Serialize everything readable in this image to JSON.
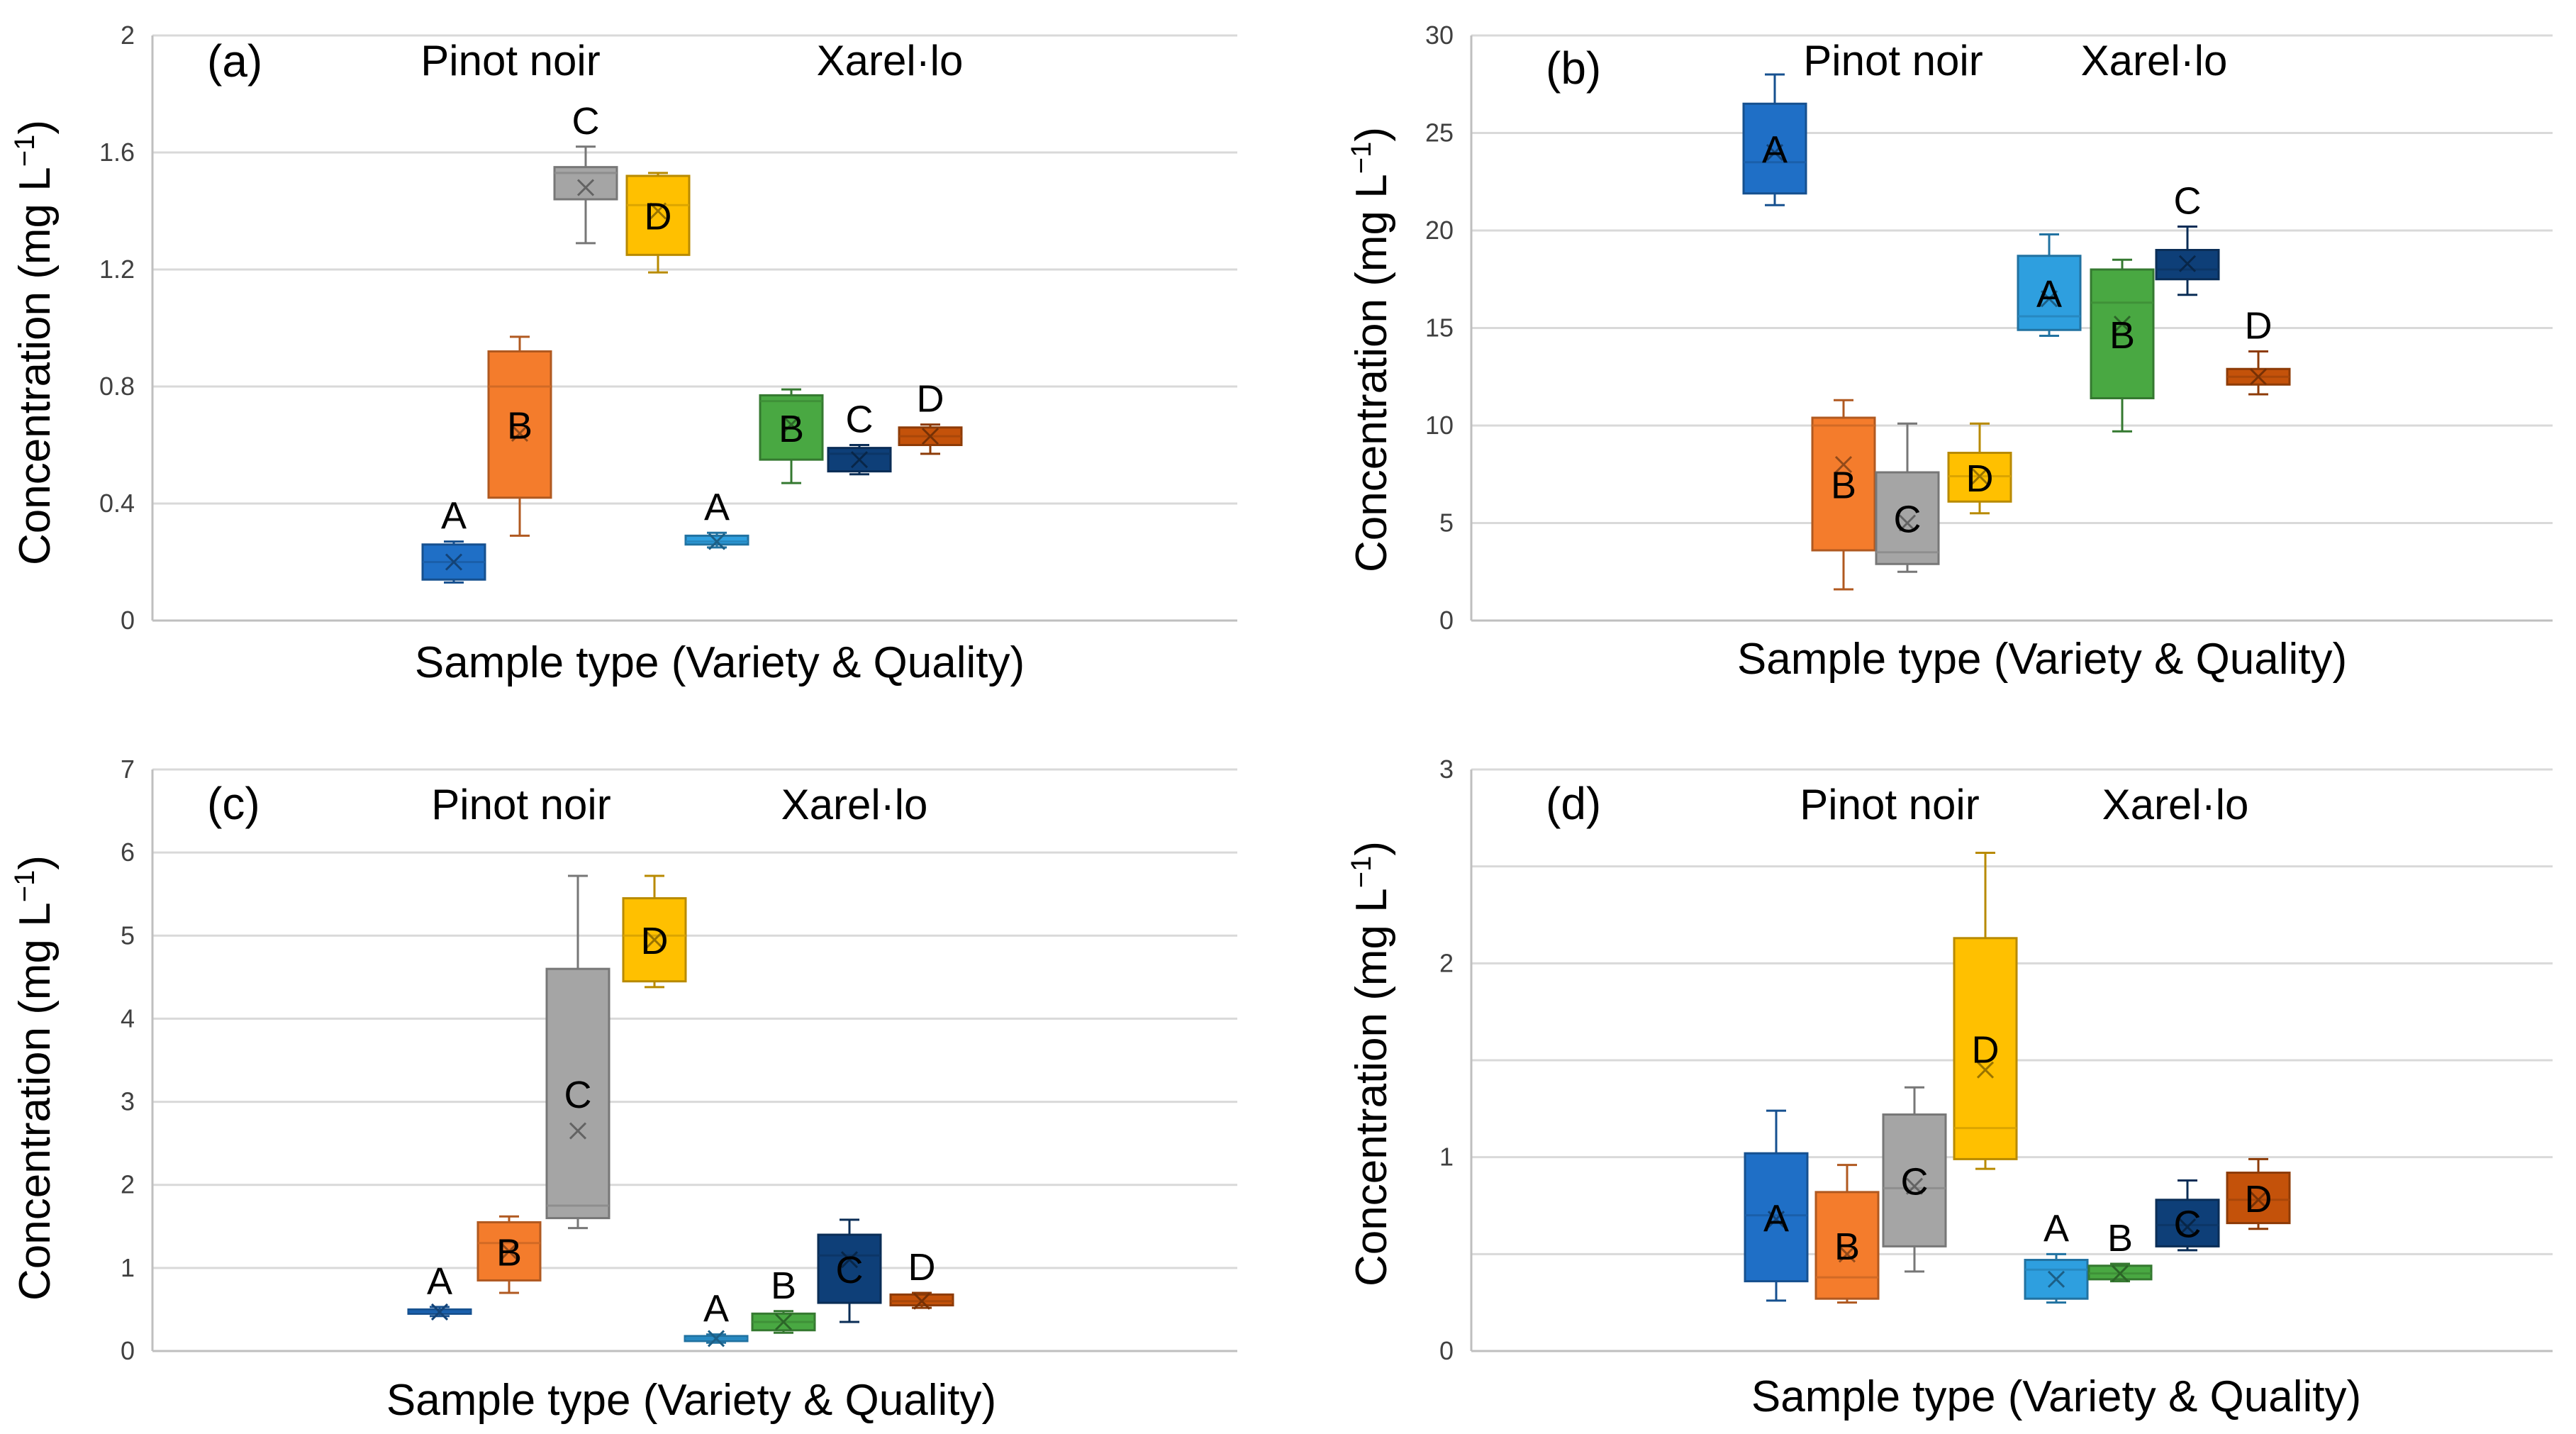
{
  "figure": {
    "variety_labels": [
      "Pinot noir",
      "Xarel·lo"
    ],
    "x_axis_title": "Sample type (Variety & Quality)",
    "y_axis_title": "Concentration (mg L",
    "y_axis_unit_superscript": "−1",
    "y_axis_unit_close": ")"
  },
  "colors": {
    "pinot_A": "#1f6fc6",
    "pinot_B": "#f47c2c",
    "pinot_C": "#a5a5a5",
    "pinot_D": "#ffc000",
    "xarel_A": "#2e9fdf",
    "xarel_B": "#49a842",
    "xarel_C": "#0e3f78",
    "xarel_D": "#c4520a",
    "grid": "#d9d9d9",
    "axis": "#bfbfbf"
  },
  "chart_data": [
    {
      "type": "box",
      "panel": "(a)",
      "ylim": [
        0,
        2
      ],
      "yticks": [
        "0",
        "0.4",
        "0.8",
        "1.2",
        "1.6",
        "2"
      ],
      "ytick_values": [
        0,
        0.4,
        0.8,
        1.2,
        1.6,
        2
      ],
      "series": [
        {
          "variety": "Pinot noir",
          "quality": "A",
          "color_key": "pinot_A",
          "min": 0.13,
          "q1": 0.14,
          "median": 0.2,
          "q3": 0.26,
          "max": 0.27,
          "mean": 0.2
        },
        {
          "variety": "Pinot noir",
          "quality": "B",
          "color_key": "pinot_B",
          "min": 0.29,
          "q1": 0.42,
          "median": 0.8,
          "q3": 0.92,
          "max": 0.97,
          "mean": 0.64
        },
        {
          "variety": "Pinot noir",
          "quality": "C",
          "color_key": "pinot_C",
          "min": 1.29,
          "q1": 1.44,
          "median": 1.53,
          "q3": 1.55,
          "max": 1.62,
          "mean": 1.48
        },
        {
          "variety": "Pinot noir",
          "quality": "D",
          "color_key": "pinot_D",
          "min": 1.19,
          "q1": 1.25,
          "median": 1.42,
          "q3": 1.52,
          "max": 1.53,
          "mean": 1.4
        },
        {
          "variety": "Xarel·lo",
          "quality": "A",
          "color_key": "xarel_A",
          "min": 0.25,
          "q1": 0.26,
          "median": 0.27,
          "q3": 0.29,
          "max": 0.3,
          "mean": 0.27
        },
        {
          "variety": "Xarel·lo",
          "quality": "B",
          "color_key": "xarel_B",
          "min": 0.47,
          "q1": 0.55,
          "median": 0.75,
          "q3": 0.77,
          "max": 0.79,
          "mean": 0.67
        },
        {
          "variety": "Xarel·lo",
          "quality": "C",
          "color_key": "xarel_C",
          "min": 0.5,
          "q1": 0.51,
          "median": 0.57,
          "q3": 0.59,
          "max": 0.6,
          "mean": 0.55
        },
        {
          "variety": "Xarel·lo",
          "quality": "D",
          "color_key": "xarel_D",
          "min": 0.57,
          "q1": 0.6,
          "median": 0.63,
          "q3": 0.66,
          "max": 0.67,
          "mean": 0.63
        }
      ]
    },
    {
      "type": "box",
      "panel": "(b)",
      "ylim": [
        0,
        30
      ],
      "yticks": [
        "0",
        "5",
        "10",
        "15",
        "20",
        "25",
        "30"
      ],
      "ytick_values": [
        0,
        5,
        10,
        15,
        20,
        25,
        30
      ],
      "series": [
        {
          "variety": "Pinot noir",
          "quality": "A",
          "color_key": "pinot_A",
          "min": 21.3,
          "q1": 21.9,
          "median": 23.5,
          "q3": 26.5,
          "max": 28.0,
          "mean": 24.0
        },
        {
          "variety": "Pinot noir",
          "quality": "B",
          "color_key": "pinot_B",
          "min": 1.6,
          "q1": 3.6,
          "median": 10.0,
          "q3": 10.4,
          "max": 11.3,
          "mean": 8.0
        },
        {
          "variety": "Pinot noir",
          "quality": "C",
          "color_key": "pinot_C",
          "min": 2.5,
          "q1": 2.9,
          "median": 3.5,
          "q3": 7.6,
          "max": 10.1,
          "mean": 5.0
        },
        {
          "variety": "Pinot noir",
          "quality": "D",
          "color_key": "pinot_D",
          "min": 5.5,
          "q1": 6.1,
          "median": 7.4,
          "q3": 8.6,
          "max": 10.1,
          "mean": 7.4
        },
        {
          "variety": "Xarel·lo",
          "quality": "A",
          "color_key": "xarel_A",
          "min": 14.6,
          "q1": 14.9,
          "median": 15.6,
          "q3": 18.7,
          "max": 19.8,
          "mean": 16.5
        },
        {
          "variety": "Xarel·lo",
          "quality": "B",
          "color_key": "xarel_B",
          "min": 9.7,
          "q1": 11.4,
          "median": 16.3,
          "q3": 18.0,
          "max": 18.5,
          "mean": 15.2
        },
        {
          "variety": "Xarel·lo",
          "quality": "C",
          "color_key": "xarel_C",
          "min": 16.7,
          "q1": 17.5,
          "median": 18.0,
          "q3": 19.0,
          "max": 20.2,
          "mean": 18.3
        },
        {
          "variety": "Xarel·lo",
          "quality": "D",
          "color_key": "xarel_D",
          "min": 11.6,
          "q1": 12.1,
          "median": 12.5,
          "q3": 12.9,
          "max": 13.8,
          "mean": 12.5
        }
      ]
    },
    {
      "type": "box",
      "panel": "(c)",
      "ylim": [
        0,
        7
      ],
      "yticks": [
        "0",
        "1",
        "2",
        "3",
        "4",
        "5",
        "6",
        "7"
      ],
      "ytick_values": [
        0,
        1,
        2,
        3,
        4,
        5,
        6,
        7
      ],
      "series": [
        {
          "variety": "Pinot noir",
          "quality": "A",
          "color_key": "pinot_A",
          "min": 0.42,
          "q1": 0.45,
          "median": 0.48,
          "q3": 0.5,
          "max": 0.53,
          "mean": 0.47
        },
        {
          "variety": "Pinot noir",
          "quality": "B",
          "color_key": "pinot_B",
          "min": 0.7,
          "q1": 0.85,
          "median": 1.3,
          "q3": 1.55,
          "max": 1.62,
          "mean": 1.2
        },
        {
          "variety": "Pinot noir",
          "quality": "C",
          "color_key": "pinot_C",
          "min": 1.48,
          "q1": 1.6,
          "median": 1.75,
          "q3": 4.6,
          "max": 5.72,
          "mean": 2.65
        },
        {
          "variety": "Pinot noir",
          "quality": "D",
          "color_key": "pinot_D",
          "min": 4.38,
          "q1": 4.45,
          "median": 5.0,
          "q3": 5.45,
          "max": 5.72,
          "mean": 4.95
        },
        {
          "variety": "Xarel·lo",
          "quality": "A",
          "color_key": "xarel_A",
          "min": 0.1,
          "q1": 0.12,
          "median": 0.15,
          "q3": 0.18,
          "max": 0.2,
          "mean": 0.15
        },
        {
          "variety": "Xarel·lo",
          "quality": "B",
          "color_key": "xarel_B",
          "min": 0.22,
          "q1": 0.25,
          "median": 0.35,
          "q3": 0.45,
          "max": 0.48,
          "mean": 0.35
        },
        {
          "variety": "Xarel·lo",
          "quality": "C",
          "color_key": "xarel_C",
          "min": 0.35,
          "q1": 0.58,
          "median": 1.15,
          "q3": 1.4,
          "max": 1.58,
          "mean": 1.1
        },
        {
          "variety": "Xarel·lo",
          "quality": "D",
          "color_key": "xarel_D",
          "min": 0.52,
          "q1": 0.55,
          "median": 0.6,
          "q3": 0.68,
          "max": 0.7,
          "mean": 0.6
        }
      ]
    },
    {
      "type": "box",
      "panel": "(d)",
      "ylim": [
        0,
        3
      ],
      "yticks": [
        "0",
        "1",
        "2",
        "3"
      ],
      "ytick_values": [
        0,
        1,
        2,
        3
      ],
      "minor_gridlines": [
        0.5,
        1.5,
        2.5
      ],
      "series": [
        {
          "variety": "Pinot noir",
          "quality": "A",
          "color_key": "pinot_A",
          "min": 0.26,
          "q1": 0.36,
          "median": 0.7,
          "q3": 1.02,
          "max": 1.24,
          "mean": 0.68
        },
        {
          "variety": "Pinot noir",
          "quality": "B",
          "color_key": "pinot_B",
          "min": 0.25,
          "q1": 0.27,
          "median": 0.38,
          "q3": 0.82,
          "max": 0.96,
          "mean": 0.5
        },
        {
          "variety": "Pinot noir",
          "quality": "C",
          "color_key": "pinot_C",
          "min": 0.41,
          "q1": 0.54,
          "median": 0.84,
          "q3": 1.22,
          "max": 1.36,
          "mean": 0.85
        },
        {
          "variety": "Pinot noir",
          "quality": "D",
          "color_key": "pinot_D",
          "min": 0.94,
          "q1": 0.99,
          "median": 1.15,
          "q3": 2.13,
          "max": 2.57,
          "mean": 1.45
        },
        {
          "variety": "Xarel·lo",
          "quality": "A",
          "color_key": "xarel_A",
          "min": 0.25,
          "q1": 0.27,
          "median": 0.42,
          "q3": 0.47,
          "max": 0.5,
          "mean": 0.37
        },
        {
          "variety": "Xarel·lo",
          "quality": "B",
          "color_key": "xarel_B",
          "min": 0.36,
          "q1": 0.37,
          "median": 0.4,
          "q3": 0.44,
          "max": 0.45,
          "mean": 0.4
        },
        {
          "variety": "Xarel·lo",
          "quality": "C",
          "color_key": "xarel_C",
          "min": 0.52,
          "q1": 0.54,
          "median": 0.65,
          "q3": 0.78,
          "max": 0.88,
          "mean": 0.64
        },
        {
          "variety": "Xarel·lo",
          "quality": "D",
          "color_key": "xarel_D",
          "min": 0.63,
          "q1": 0.66,
          "median": 0.78,
          "q3": 0.92,
          "max": 0.99,
          "mean": 0.78
        }
      ]
    }
  ]
}
